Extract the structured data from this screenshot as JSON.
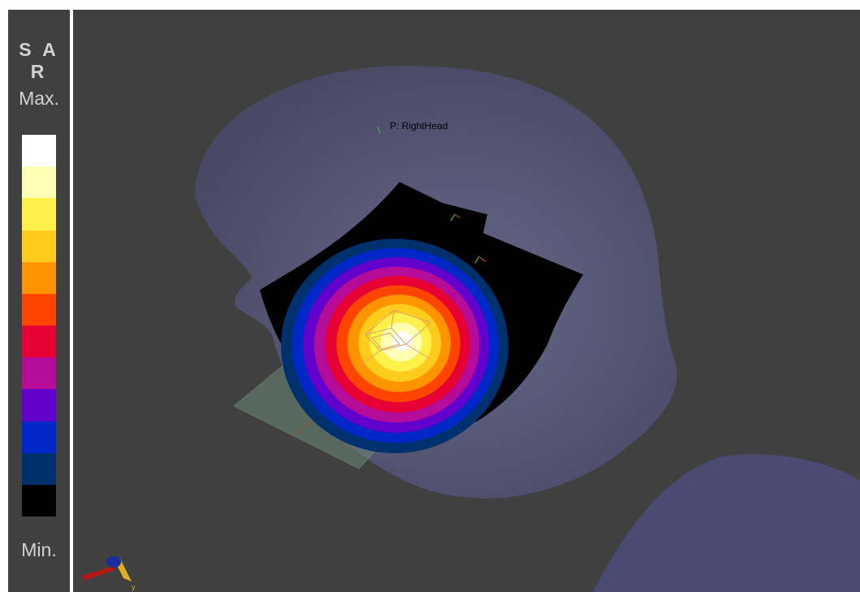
{
  "legend": {
    "title": "S A R",
    "max_label": "Max.",
    "min_label": "Min.",
    "colors": [
      "#ffffff",
      "#ffffb4",
      "#fff04a",
      "#ffcc1e",
      "#ff9400",
      "#ff4400",
      "#e60033",
      "#b50b99",
      "#6300cc",
      "#0028c8",
      "#00306e",
      "#000000"
    ]
  },
  "viewport": {
    "marker_label": "P: RightHead",
    "axis_label": "y",
    "head_color": "#5a5a80",
    "background": "#404040"
  }
}
